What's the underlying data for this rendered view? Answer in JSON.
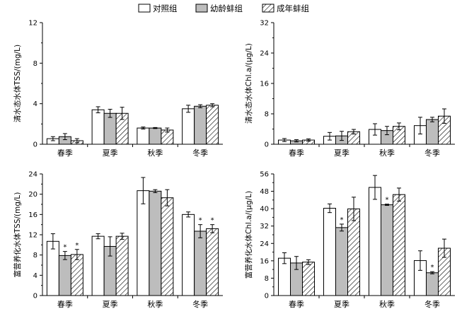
{
  "legend": [
    {
      "label": "对照组",
      "style": "white"
    },
    {
      "label": "幼龄蚌组",
      "style": "gray"
    },
    {
      "label": "成年蚌组",
      "style": "hatch"
    }
  ],
  "colors": {
    "white": "#ffffff",
    "gray": "#bdbdbd",
    "hatch": "#ffffff",
    "stroke": "#000000"
  },
  "chart_data": [
    {
      "type": "bar",
      "ylabel": "清水态水体TSS/(mg/L)",
      "ylim": [
        0,
        12
      ],
      "yticks": [
        0,
        4,
        8,
        12
      ],
      "categories": [
        "春季",
        "夏季",
        "秋季",
        "冬季"
      ],
      "series": [
        {
          "name": "对照组",
          "values": [
            0.55,
            3.4,
            1.6,
            3.5
          ],
          "errors": [
            0.2,
            0.3,
            0.1,
            0.35
          ],
          "stars": [
            false,
            false,
            false,
            false
          ]
        },
        {
          "name": "幼龄蚌组",
          "values": [
            0.75,
            3.05,
            1.6,
            3.75
          ],
          "errors": [
            0.3,
            0.4,
            0.05,
            0.15
          ],
          "stars": [
            false,
            false,
            false,
            false
          ]
        },
        {
          "name": "成年蚌组",
          "values": [
            0.35,
            3.05,
            1.4,
            3.85
          ],
          "errors": [
            0.2,
            0.6,
            0.2,
            0.15
          ],
          "stars": [
            false,
            false,
            false,
            false
          ]
        }
      ]
    },
    {
      "type": "bar",
      "ylabel": "清水态水体Chl.a/(μg/L)",
      "ylim": [
        0,
        32
      ],
      "yticks": [
        0,
        8,
        16,
        24,
        32
      ],
      "categories": [
        "春季",
        "夏季",
        "秋季",
        "冬季"
      ],
      "series": [
        {
          "name": "对照组",
          "values": [
            1.1,
            2.1,
            3.9,
            4.9
          ],
          "errors": [
            0.4,
            1.0,
            1.5,
            2.2
          ],
          "stars": [
            false,
            false,
            false,
            false
          ]
        },
        {
          "name": "幼龄蚌组",
          "values": [
            0.9,
            2.2,
            3.6,
            6.5
          ],
          "errors": [
            0.3,
            1.2,
            1.1,
            0.6
          ],
          "stars": [
            false,
            false,
            false,
            false
          ]
        },
        {
          "name": "成年蚌组",
          "values": [
            1.1,
            3.3,
            4.7,
            7.4
          ],
          "errors": [
            0.3,
            0.6,
            0.9,
            1.9
          ],
          "stars": [
            false,
            false,
            false,
            false
          ]
        }
      ]
    },
    {
      "type": "bar",
      "ylabel": "富营养化水体TSS/(mg/L)",
      "ylim": [
        0,
        24
      ],
      "yticks": [
        0,
        4,
        8,
        12,
        16,
        20,
        24
      ],
      "categories": [
        "春季",
        "夏季",
        "秋季",
        "冬季"
      ],
      "series": [
        {
          "name": "对照组",
          "values": [
            10.7,
            11.7,
            20.7,
            16.0
          ],
          "errors": [
            1.5,
            0.5,
            2.6,
            0.5
          ],
          "stars": [
            false,
            false,
            false,
            false
          ]
        },
        {
          "name": "幼龄蚌组",
          "values": [
            7.9,
            9.7,
            20.6,
            12.7
          ],
          "errors": [
            0.8,
            1.9,
            0.3,
            1.3
          ],
          "stars": [
            true,
            false,
            false,
            true
          ]
        },
        {
          "name": "成年蚌组",
          "values": [
            8.1,
            11.7,
            19.3,
            13.2
          ],
          "errors": [
            1.0,
            0.6,
            1.6,
            0.8
          ],
          "stars": [
            true,
            false,
            false,
            true
          ]
        }
      ]
    },
    {
      "type": "bar",
      "ylabel": "富营养化水体Chl.a/(μg/L)",
      "ylim": [
        0,
        56
      ],
      "yticks": [
        0,
        8,
        16,
        24,
        32,
        40,
        48,
        56
      ],
      "categories": [
        "春季",
        "夏季",
        "秋季",
        "冬季"
      ],
      "series": [
        {
          "name": "对照组",
          "values": [
            17.2,
            40.2,
            49.8,
            16.1
          ],
          "errors": [
            2.5,
            2.0,
            5.5,
            4.5
          ],
          "stars": [
            false,
            false,
            false,
            false
          ]
        },
        {
          "name": "幼龄蚌组",
          "values": [
            15.0,
            31.3,
            41.8,
            10.5
          ],
          "errors": [
            3.0,
            1.6,
            0.3,
            0.5
          ],
          "stars": [
            false,
            true,
            true,
            true
          ]
        },
        {
          "name": "成年蚌组",
          "values": [
            15.4,
            39.9,
            46.5,
            21.8
          ],
          "errors": [
            1.1,
            5.4,
            3.0,
            4.2
          ],
          "stars": [
            false,
            false,
            false,
            false
          ]
        }
      ]
    }
  ]
}
